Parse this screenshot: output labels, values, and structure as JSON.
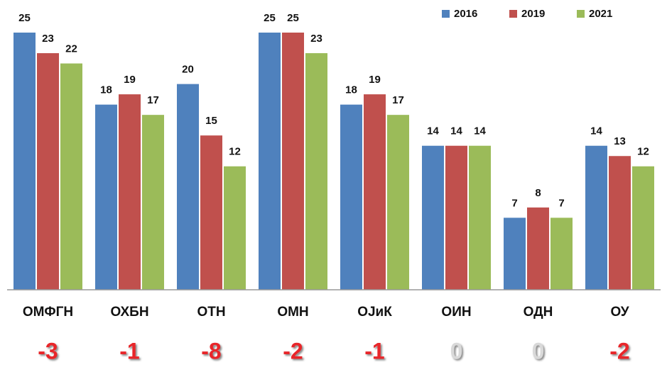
{
  "chart_data": {
    "type": "bar",
    "categories": [
      "ОМФГН",
      "ОХБН",
      "ОТН",
      "ОМН",
      "ОЈиК",
      "ОИН",
      "ОДН",
      "ОУ"
    ],
    "series": [
      {
        "name": "2016",
        "color": "#4f81bd",
        "values": [
          25,
          18,
          20,
          25,
          18,
          14,
          7,
          14
        ]
      },
      {
        "name": "2019",
        "color": "#c0504d",
        "values": [
          23,
          19,
          15,
          25,
          19,
          14,
          8,
          13
        ]
      },
      {
        "name": "2021",
        "color": "#9bbb59",
        "values": [
          22,
          17,
          12,
          23,
          17,
          14,
          7,
          12
        ]
      }
    ],
    "differences": [
      -3,
      -1,
      -8,
      -2,
      -1,
      0,
      0,
      -2
    ],
    "ylim": [
      0,
      25
    ],
    "legend": "top-right"
  }
}
